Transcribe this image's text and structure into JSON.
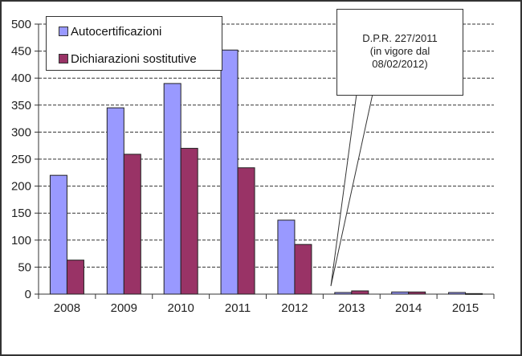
{
  "chart_data": {
    "type": "bar",
    "title": "",
    "xlabel": "",
    "ylabel": "",
    "ylim": [
      0,
      500
    ],
    "yticks": [
      0,
      50,
      100,
      150,
      200,
      250,
      300,
      350,
      400,
      450,
      500
    ],
    "grid": "dashed horizontal",
    "legend_position": "top-left inside",
    "categories": [
      "2008",
      "2009",
      "2010",
      "2011",
      "2012",
      "2013",
      "2014",
      "2015"
    ],
    "series": [
      {
        "name": "Autocertificazioni",
        "color": "#9999FF",
        "values": [
          220,
          345,
          390,
          452,
          137,
          3,
          4,
          3
        ]
      },
      {
        "name": "Dichiarazioni sostitutive",
        "color": "#993366",
        "values": [
          63,
          259,
          270,
          234,
          92,
          6,
          4,
          1
        ]
      }
    ],
    "annotations": [
      {
        "text_lines": [
          "D.P.R. 227/2011",
          "(in vigore dal",
          "08/02/2012)"
        ],
        "points_to": "between 2012 and 2013"
      }
    ]
  },
  "legend": {
    "items": [
      {
        "label": "Autocertificazioni",
        "color": "#9999FF"
      },
      {
        "label": "Dichiarazioni sostitutive",
        "color": "#993366"
      }
    ]
  },
  "callout": {
    "line1": "D.P.R. 227/2011",
    "line2": "(in vigore dal",
    "line3": "08/02/2012)"
  }
}
